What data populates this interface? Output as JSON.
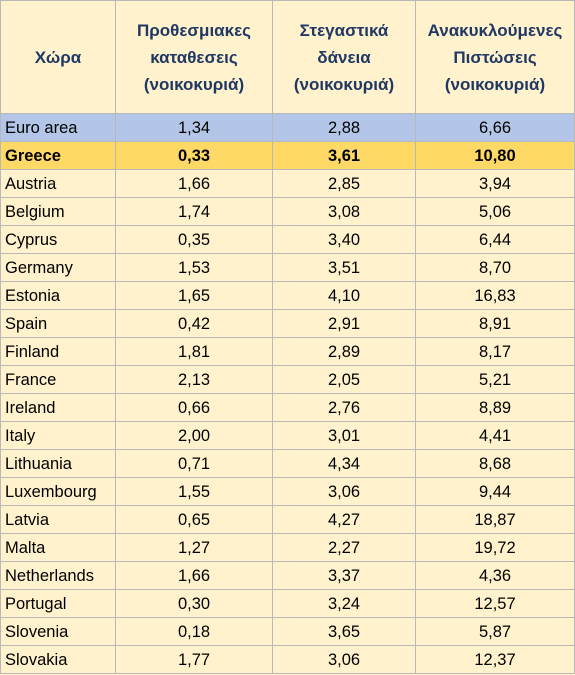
{
  "chart_data": {
    "type": "table",
    "columns": [
      {
        "lines": [
          "Χώρα"
        ]
      },
      {
        "lines": [
          "Προθεσμιακες",
          "καταθεσεις",
          "(νοικοκυριά)"
        ]
      },
      {
        "lines": [
          "Στεγαστικά",
          "δάνεια",
          "(νοικοκυριά)"
        ]
      },
      {
        "lines": [
          "Ανακυκλούμενες",
          "Πιστώσεις",
          "(νοικοκυριά)"
        ]
      }
    ],
    "rows": [
      {
        "country": "Euro area",
        "values": [
          "1,34",
          "2,88",
          "6,66"
        ],
        "highlight": "euro"
      },
      {
        "country": "Greece",
        "values": [
          "0,33",
          "3,61",
          "10,80"
        ],
        "highlight": "greece"
      },
      {
        "country": "Austria",
        "values": [
          "1,66",
          "2,85",
          "3,94"
        ]
      },
      {
        "country": "Belgium",
        "values": [
          "1,74",
          "3,08",
          "5,06"
        ]
      },
      {
        "country": "Cyprus",
        "values": [
          "0,35",
          "3,40",
          "6,44"
        ]
      },
      {
        "country": "Germany",
        "values": [
          "1,53",
          "3,51",
          "8,70"
        ]
      },
      {
        "country": "Estonia",
        "values": [
          "1,65",
          "4,10",
          "16,83"
        ]
      },
      {
        "country": "Spain",
        "values": [
          "0,42",
          "2,91",
          "8,91"
        ]
      },
      {
        "country": "Finland",
        "values": [
          "1,81",
          "2,89",
          "8,17"
        ]
      },
      {
        "country": "France",
        "values": [
          "2,13",
          "2,05",
          "5,21"
        ]
      },
      {
        "country": "Ireland",
        "values": [
          "0,66",
          "2,76",
          "8,89"
        ]
      },
      {
        "country": "Italy",
        "values": [
          "2,00",
          "3,01",
          "4,41"
        ]
      },
      {
        "country": "Lithuania",
        "values": [
          "0,71",
          "4,34",
          "8,68"
        ]
      },
      {
        "country": "Luxembourg",
        "values": [
          "1,55",
          "3,06",
          "9,44"
        ]
      },
      {
        "country": "Latvia",
        "values": [
          "0,65",
          "4,27",
          "18,87"
        ]
      },
      {
        "country": "Malta",
        "values": [
          "1,27",
          "2,27",
          "19,72"
        ]
      },
      {
        "country": "Netherlands",
        "values": [
          "1,66",
          "3,37",
          "4,36"
        ]
      },
      {
        "country": "Portugal",
        "values": [
          "0,30",
          "3,24",
          "12,57"
        ]
      },
      {
        "country": "Slovenia",
        "values": [
          "0,18",
          "3,65",
          "5,87"
        ]
      },
      {
        "country": "Slovakia",
        "values": [
          "1,77",
          "3,06",
          "12,37"
        ]
      }
    ]
  },
  "colors": {
    "header_background": "#fff2cc",
    "header_text": "#1f3864",
    "row_background": "#fff2cc",
    "euro_area_highlight": "#b4c6e7",
    "greece_highlight": "#ffd966",
    "grid_lines": "#b8b8b8"
  }
}
